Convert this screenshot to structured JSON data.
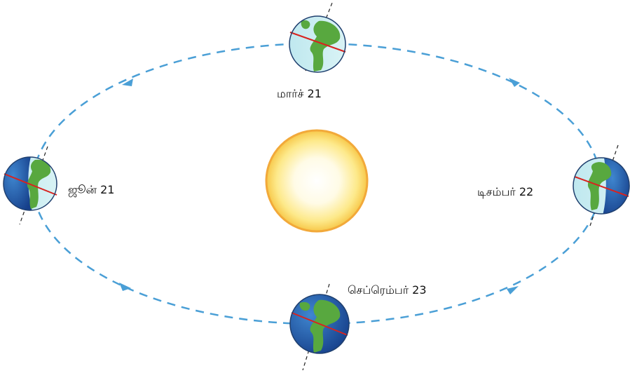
{
  "diagram": {
    "labels": {
      "march": "மார்ச் 21",
      "june": "ஜூன் 21",
      "december": "டிசம்பர் 22",
      "september": "செப்ரெம்பர் 23"
    },
    "colors": {
      "orbit": "#4a9fd6",
      "sun_core": "#ffffff",
      "sun_glow": "#fde98a",
      "sun_rim": "#f2a93a",
      "ocean_light": "#cfeef2",
      "ocean_dark": "#1b4fa0",
      "land": "#58a83f",
      "equator": "#d8231f"
    }
  }
}
